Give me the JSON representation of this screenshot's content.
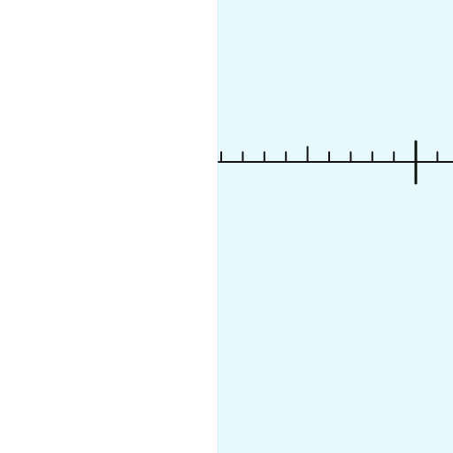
{
  "panel": {
    "background": "#e6f9fc",
    "border": "#cfeff4"
  },
  "number_line": {
    "stroke": "#111111",
    "minor_ticks": 10,
    "major_tick_index": 4,
    "marker_index": 9,
    "minor_ticks_after_marker": 1
  }
}
